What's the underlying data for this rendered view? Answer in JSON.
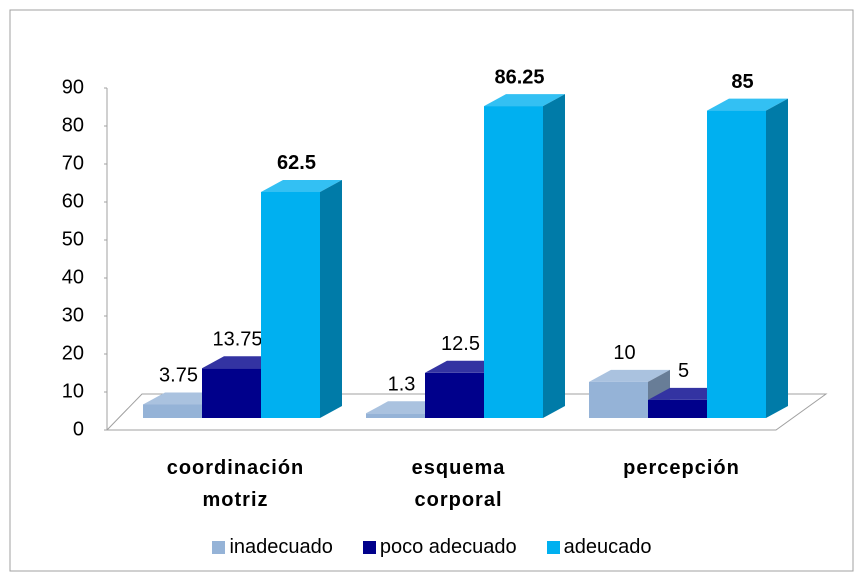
{
  "chart_data": {
    "type": "bar3d",
    "categories": [
      "coordinación motriz",
      "esquema corporal",
      "percepción"
    ],
    "series": [
      {
        "name": "inadecuado",
        "color": "#95b3d7",
        "values": [
          3.75,
          1.3,
          10
        ]
      },
      {
        "name": "poco adecuado",
        "color": "#00008b",
        "values": [
          13.75,
          12.5,
          5
        ]
      },
      {
        "name": "adeucado",
        "color": "#00b0f0",
        "values": [
          62.5,
          86.25,
          85
        ]
      }
    ],
    "ylim": [
      0,
      90
    ],
    "yticks": [
      0,
      10,
      20,
      30,
      40,
      50,
      60,
      70,
      80,
      90
    ],
    "grid": false,
    "legend": "bottom"
  }
}
